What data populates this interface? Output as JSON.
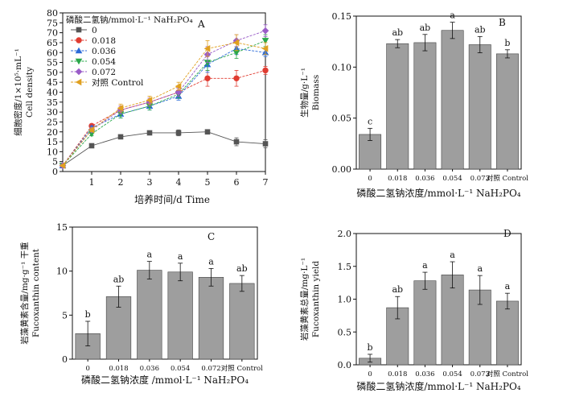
{
  "chart_data": [
    {
      "panel": "A",
      "type": "line",
      "xlabel": "培养时间/d Time",
      "ylabel_cn": "细胞密度/1×10⁵·mL⁻¹",
      "ylabel_en": "Cell density",
      "legend_title": "磷酸二氢钠/mmol·L⁻¹ NaH₂PO₄",
      "legend_placement": "top-left",
      "x": [
        0,
        1,
        2,
        3,
        4,
        5,
        6,
        7
      ],
      "xlim": [
        0,
        7
      ],
      "ylim": [
        0,
        80
      ],
      "yticks": [
        0,
        5,
        10,
        15,
        20,
        25,
        30,
        35,
        40,
        45,
        50,
        55,
        60,
        65,
        70,
        75,
        80
      ],
      "xticks": [
        1,
        2,
        3,
        4,
        5,
        6,
        7
      ],
      "series": [
        {
          "name": "0",
          "color": "#555555",
          "marker": "square",
          "values": [
            3,
            13,
            17.5,
            19.5,
            19.5,
            20,
            15,
            14
          ],
          "err": [
            0.5,
            1,
            1,
            1,
            1.5,
            1,
            2,
            2
          ]
        },
        {
          "name": "0.018",
          "color": "#e03c31",
          "marker": "circle",
          "values": [
            3,
            23,
            31,
            35,
            40,
            47,
            47,
            51
          ],
          "err": [
            0.5,
            1,
            2,
            2,
            2,
            4,
            4,
            2
          ]
        },
        {
          "name": "0.036",
          "color": "#2a6ad8",
          "marker": "triangle-up",
          "values": [
            3,
            22,
            29,
            33,
            38,
            54,
            62,
            60
          ],
          "err": [
            0.5,
            1,
            2,
            2,
            2,
            4,
            3,
            2
          ]
        },
        {
          "name": "0.054",
          "color": "#2aa84a",
          "marker": "triangle-down",
          "values": [
            3,
            19,
            29,
            33,
            39,
            55,
            60,
            66
          ],
          "err": [
            0.5,
            1,
            2,
            2,
            2,
            4,
            3,
            3
          ]
        },
        {
          "name": "0.072",
          "color": "#9a5cc8",
          "marker": "diamond",
          "values": [
            3,
            21,
            31,
            35,
            40,
            59,
            66,
            71
          ],
          "err": [
            0.5,
            1,
            2,
            2,
            2,
            4,
            3,
            3
          ]
        },
        {
          "name": "对照 Control",
          "color": "#e0a020",
          "marker": "triangle-left",
          "values": [
            3,
            21,
            32,
            36,
            43,
            62,
            65,
            62
          ],
          "err": [
            0.5,
            1,
            2,
            2,
            2,
            4,
            4,
            3
          ]
        }
      ]
    },
    {
      "panel": "B",
      "type": "bar",
      "xlabel": "磷酸二氢钠浓度/mmol·L⁻¹ NaH₂PO₄",
      "ylabel_cn": "生物量/g·L⁻¹",
      "ylabel_en": "Biomass",
      "categories": [
        "0",
        "0.018",
        "0.036",
        "0.054",
        "0.072",
        "对照 Control"
      ],
      "values": [
        0.034,
        0.123,
        0.124,
        0.136,
        0.122,
        0.113
      ],
      "err": [
        0.006,
        0.004,
        0.008,
        0.008,
        0.008,
        0.004
      ],
      "sig": [
        "c",
        "ab",
        "ab",
        "a",
        "ab",
        "b"
      ],
      "ylim": [
        0,
        0.15
      ],
      "yticks": [
        "0.00",
        "0.05",
        "0.10",
        "0.15"
      ]
    },
    {
      "panel": "C",
      "type": "bar",
      "xlabel": "磷酸二氢钠浓度 /mmol·L⁻¹ NaH₂PO₄",
      "ylabel_cn": "岩藻黄素含量/mg·g⁻¹ 干重",
      "ylabel_en": "Fucoxanthin content",
      "categories": [
        "0",
        "0.018",
        "0.036",
        "0.054",
        "0.072",
        "对照 Control"
      ],
      "values": [
        2.9,
        7.1,
        10.1,
        9.9,
        9.3,
        8.6
      ],
      "err": [
        1.4,
        1.2,
        1.0,
        1.0,
        1.0,
        0.9
      ],
      "sig": [
        "b",
        "ab",
        "a",
        "a",
        "a",
        "ab"
      ],
      "ylim": [
        0,
        15
      ],
      "yticks": [
        "0",
        "5",
        "10",
        "15"
      ]
    },
    {
      "panel": "D",
      "type": "bar",
      "xlabel": "磷酸二氢钠浓度/mmol·L⁻¹ NaH₂PO₄",
      "ylabel_cn": "岩藻黄素总量/mg·L⁻¹",
      "ylabel_en": "Fucoxanthin yield",
      "categories": [
        "0",
        "0.018",
        "0.036",
        "0.054",
        "0.072",
        "对照 Control"
      ],
      "values": [
        0.1,
        0.87,
        1.28,
        1.37,
        1.14,
        0.97
      ],
      "err": [
        0.06,
        0.17,
        0.13,
        0.2,
        0.22,
        0.12
      ],
      "sig": [
        "b",
        "ab",
        "a",
        "a",
        "a",
        "a"
      ],
      "ylim": [
        0,
        2.0
      ],
      "yticks": [
        "0.0",
        "0.5",
        "1.0",
        "1.5",
        "2.0"
      ]
    }
  ]
}
